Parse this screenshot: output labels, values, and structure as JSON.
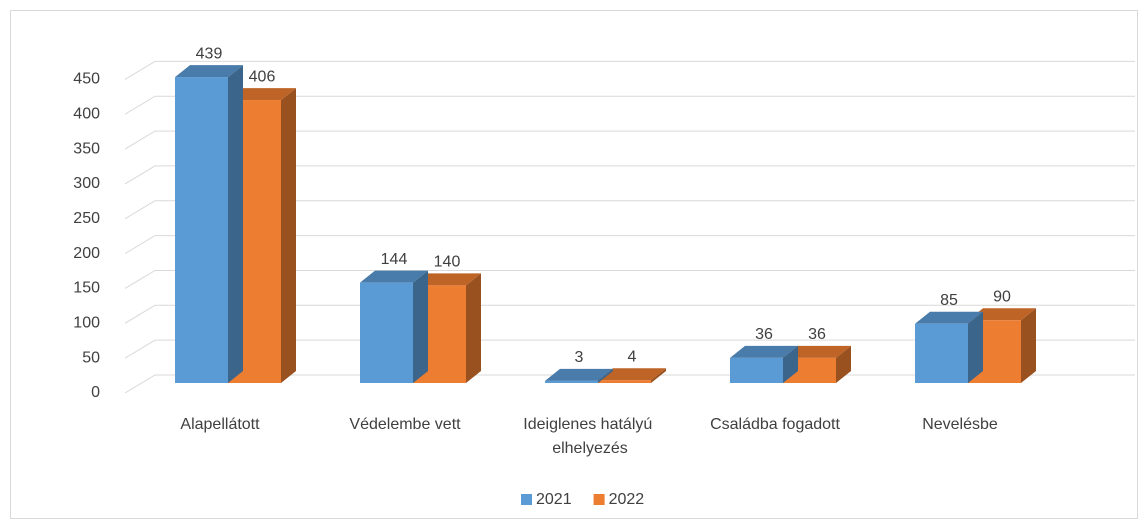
{
  "chart_data": {
    "type": "bar3d",
    "categories": [
      "Alapellátott",
      "Védelembe vett",
      "Ideiglenes hatályú elhelyezés",
      "Családba fogadott",
      "Nevelésbe"
    ],
    "series": [
      {
        "name": "2021",
        "color": "#5b9bd5",
        "values": [
          439,
          144,
          3,
          36,
          85
        ]
      },
      {
        "name": "2022",
        "color": "#ed7d31",
        "values": [
          406,
          140,
          4,
          36,
          90
        ]
      }
    ],
    "ylim": [
      0,
      450
    ],
    "yticks": [
      0,
      50,
      100,
      150,
      200,
      250,
      300,
      350,
      400,
      450
    ],
    "grid": true,
    "legend": "bottom"
  }
}
